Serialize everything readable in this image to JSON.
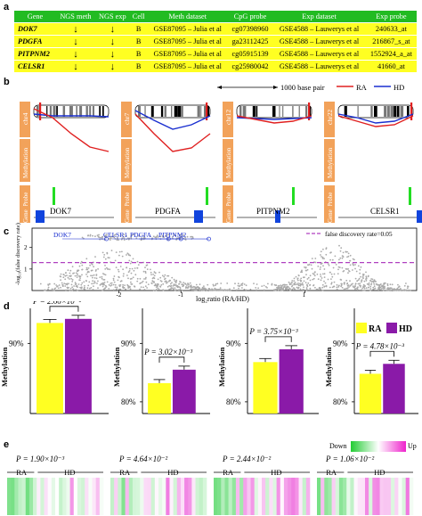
{
  "panels": {
    "a": "a",
    "b": "b",
    "c": "c",
    "d": "d",
    "e": "e"
  },
  "table": {
    "headers": [
      "Gene",
      "NGS meth",
      "NGS exp",
      "Cell",
      "Meth dataset",
      "CpG probe",
      "Exp dataset",
      "Exp probe"
    ],
    "rows": [
      {
        "gene": "DOK7",
        "meth": "↓",
        "exp": "↓",
        "cell": "B",
        "meth_ds": "GSE87095 – Julia et al",
        "cpg": "cg07398960",
        "exp_ds": "GSE4588 – Lauwerys et al",
        "exp_probe": "240633_at"
      },
      {
        "gene": "PDGFA",
        "meth": "↓",
        "exp": "↓",
        "cell": "B",
        "meth_ds": "GSE87095 – Julia et al",
        "cpg": "ga23112425",
        "exp_ds": "GSE4588 – Lauwerys et al",
        "exp_probe": "216867_s_at"
      },
      {
        "gene": "PITPNM2",
        "meth": "↓",
        "exp": "↓",
        "cell": "B",
        "meth_ds": "GSE87095 – Julia et al",
        "cpg": "cg05915139",
        "exp_ds": "GSE4588 – Lauwerys et al",
        "exp_probe": "1552924_a_at"
      },
      {
        "gene": "CELSR1",
        "meth": "↓",
        "exp": "↓",
        "cell": "B",
        "meth_ds": "GSE87095 – Julia et al",
        "cpg": "cg25980042",
        "exp_ds": "GSE4588 – Lauwerys et al",
        "exp_probe": "41660_at"
      }
    ]
  },
  "panel_b": {
    "scale_label": "1000 base pair",
    "legend_ra": "RA",
    "legend_hd": "HD",
    "row_labels": {
      "methylation": "Methylation",
      "probe": "Probe",
      "gene": "Gene"
    },
    "colors": {
      "ra": "#e02020",
      "hd": "#1a2fd0",
      "orange": "#f2a25a",
      "probe": "#22dd22",
      "gene": "#1144dd"
    },
    "tracks": [
      {
        "chr": "chr4",
        "gene": "DOK7"
      },
      {
        "chr": "chr7",
        "gene": "PDGFA"
      },
      {
        "chr": "chr12",
        "gene": "PITPNM2"
      },
      {
        "chr": "chr22",
        "gene": "CELSR1"
      }
    ]
  },
  "chart_data": [
    {
      "type": "scatter",
      "panel": "c",
      "ylabel": "-log₁₀(false discovery rate)",
      "xlabel": "log₂ratio (RA/HD)",
      "x_ticks": [
        "-2",
        "-1",
        "1"
      ],
      "y_ticks": [
        "2",
        "1"
      ],
      "threshold_label": "false discovery rate=0.05",
      "threshold_y": 1.3,
      "annotations": [
        "DOK7",
        "CELSR1",
        "PDGFA",
        "PITPNM2"
      ]
    },
    {
      "type": "bar",
      "panel": "d",
      "ylabel": "Methylation",
      "legend": [
        "RA",
        "HD"
      ],
      "colors": {
        "RA": "#ffff22",
        "HD": "#8a1aa8"
      },
      "groups": [
        {
          "p": "P = 2.66×10⁻²",
          "ticks": [
            "90%"
          ],
          "RA": 93.5,
          "HD": 94.2
        },
        {
          "p": "P = 3.02×10⁻³",
          "ticks": [
            "90%",
            "80%"
          ],
          "RA": 83.2,
          "HD": 85.5
        },
        {
          "p": "P = 3.75×10⁻³",
          "ticks": [
            "90%",
            "80%"
          ],
          "RA": 86.8,
          "HD": 89.0
        },
        {
          "p": "P = 4.78×10⁻³",
          "ticks": [
            "90%",
            "80%"
          ],
          "RA": 84.8,
          "HD": 86.5
        }
      ]
    },
    {
      "type": "heatmap",
      "panel": "e",
      "legend_low": "Down",
      "legend_high": "Up",
      "group_labels": [
        "RA",
        "HD"
      ],
      "p_values": [
        "P = 1.90×10⁻³",
        "P = 4.64×10⁻²",
        "P = 2.44×10⁻²",
        "P = 1.06×10⁻²"
      ]
    }
  ]
}
